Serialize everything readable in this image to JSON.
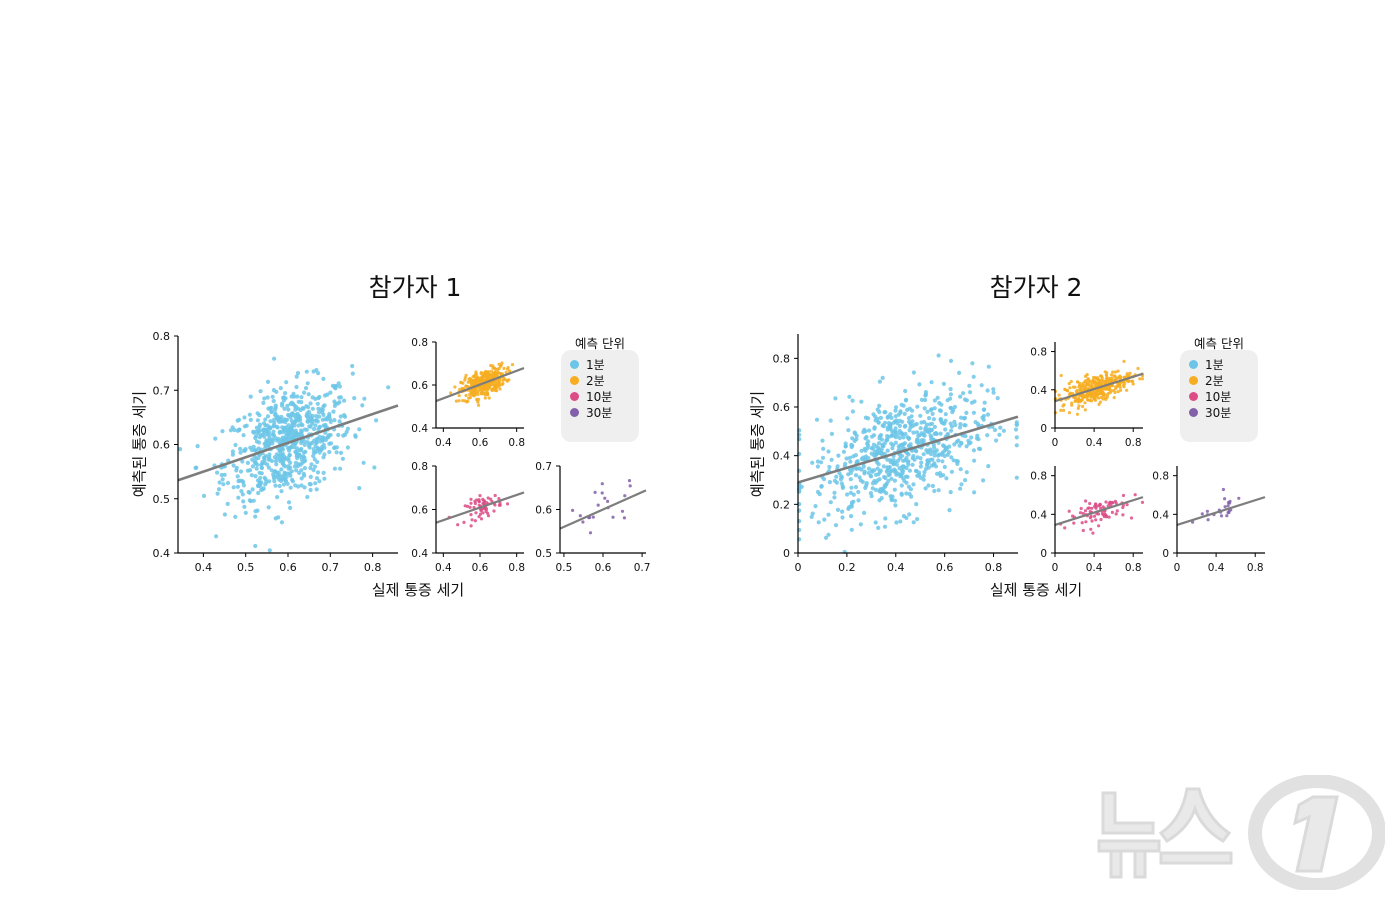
{
  "panels": [
    {
      "title": "참가자 1",
      "xlabel": "실제 통증 세기",
      "ylabel": "예측된 통증 세기",
      "legend": {
        "title": "예측 단위",
        "items": [
          {
            "label": "1분",
            "color": "#6cc5e8"
          },
          {
            "label": "2분",
            "color": "#f6ad1f"
          },
          {
            "label": "10분",
            "color": "#dc4c86"
          },
          {
            "label": "30분",
            "color": "#8261aa"
          }
        ]
      }
    },
    {
      "title": "참가자 2",
      "xlabel": "실제 통증 세기",
      "ylabel": "예측된 통증 세기",
      "legend": {
        "title": "예측 단위",
        "items": [
          {
            "label": "1분",
            "color": "#6cc5e8"
          },
          {
            "label": "2분",
            "color": "#f6ad1f"
          },
          {
            "label": "10분",
            "color": "#dc4c86"
          },
          {
            "label": "30분",
            "color": "#8261aa"
          }
        ]
      }
    }
  ],
  "chart_data": [
    {
      "type": "scatter",
      "participant": "참가자 1",
      "unit": "1분",
      "color": "#6cc5e8",
      "xlim": [
        0.34,
        0.86
      ],
      "ylim": [
        0.4,
        0.8
      ],
      "xticks": [
        "0.4",
        "0.5",
        "0.6",
        "0.7",
        "0.8"
      ],
      "yticks": [
        "0.4",
        "0.5",
        "0.6",
        "0.7",
        "0.8"
      ],
      "xticks_v": [
        0.4,
        0.5,
        0.6,
        0.7,
        0.8
      ],
      "yticks_v": [
        0.4,
        0.5,
        0.6,
        0.7,
        0.8
      ],
      "n_points": 700,
      "center": [
        0.6,
        0.61
      ],
      "spread": [
        0.075,
        0.05
      ],
      "fit": {
        "intercept": 0.444,
        "slope": 0.265
      }
    },
    {
      "type": "scatter",
      "participant": "참가자 1",
      "unit": "2분",
      "color": "#f6ad1f",
      "xlim": [
        0.36,
        0.84
      ],
      "ylim": [
        0.4,
        0.8
      ],
      "xticks": [
        "0.4",
        "0.6",
        "0.8"
      ],
      "yticks": [
        "0.4",
        "0.6",
        "0.8"
      ],
      "xticks_v": [
        0.4,
        0.6,
        0.8
      ],
      "yticks_v": [
        0.4,
        0.6,
        0.8
      ],
      "n_points": 350,
      "center": [
        0.62,
        0.61
      ],
      "spread": [
        0.06,
        0.03
      ],
      "fit": {
        "intercept": 0.41,
        "slope": 0.32
      }
    },
    {
      "type": "scatter",
      "participant": "참가자 1",
      "unit": "10분",
      "color": "#dc4c86",
      "xlim": [
        0.36,
        0.84
      ],
      "ylim": [
        0.4,
        0.8
      ],
      "xticks": [
        "0.4",
        "0.6",
        "0.8"
      ],
      "yticks": [
        "0.4",
        "0.6",
        "0.8"
      ],
      "xticks_v": [
        0.4,
        0.6,
        0.8
      ],
      "yticks_v": [
        0.4,
        0.6,
        0.8
      ],
      "n_points": 60,
      "center": [
        0.62,
        0.61
      ],
      "spread": [
        0.05,
        0.025
      ],
      "fit": {
        "intercept": 0.435,
        "slope": 0.29
      }
    },
    {
      "type": "scatter",
      "participant": "참가자 1",
      "unit": "30분",
      "color": "#8261aa",
      "xlim": [
        0.49,
        0.71
      ],
      "ylim": [
        0.5,
        0.7
      ],
      "xticks": [
        "0.5",
        "0.6",
        "0.7"
      ],
      "yticks": [
        "0.5",
        "0.6",
        "0.7"
      ],
      "xticks_v": [
        0.5,
        0.6,
        0.7
      ],
      "yticks_v": [
        0.5,
        0.6,
        0.7
      ],
      "n_points": 20,
      "center": [
        0.61,
        0.6
      ],
      "spread": [
        0.05,
        0.025
      ],
      "fit": {
        "intercept": 0.36,
        "slope": 0.4
      }
    },
    {
      "type": "scatter",
      "participant": "참가자 2",
      "unit": "1분",
      "color": "#6cc5e8",
      "xlim": [
        0,
        0.9
      ],
      "ylim": [
        0,
        0.9
      ],
      "xticks": [
        "0",
        "0.2",
        "0.4",
        "0.6",
        "0.8"
      ],
      "yticks": [
        "0",
        "0.2",
        "0.4",
        "0.6",
        "0.8"
      ],
      "xticks_v": [
        0,
        0.2,
        0.4,
        0.6,
        0.8
      ],
      "yticks_v": [
        0,
        0.2,
        0.4,
        0.6,
        0.8
      ],
      "n_points": 700,
      "center": [
        0.42,
        0.42
      ],
      "spread": [
        0.18,
        0.12
      ],
      "fit": {
        "intercept": 0.29,
        "slope": 0.3
      }
    },
    {
      "type": "scatter",
      "participant": "참가자 2",
      "unit": "2분",
      "color": "#f6ad1f",
      "xlim": [
        0,
        0.9
      ],
      "ylim": [
        0,
        0.9
      ],
      "xticks": [
        "0",
        "0.4",
        "0.8"
      ],
      "yticks": [
        "0",
        "0.4",
        "0.8"
      ],
      "xticks_v": [
        0,
        0.4,
        0.8
      ],
      "yticks_v": [
        0,
        0.4,
        0.8
      ],
      "n_points": 350,
      "center": [
        0.42,
        0.42
      ],
      "spread": [
        0.18,
        0.07
      ],
      "fit": {
        "intercept": 0.28,
        "slope": 0.32
      }
    },
    {
      "type": "scatter",
      "participant": "참가자 2",
      "unit": "10분",
      "color": "#dc4c86",
      "xlim": [
        0,
        0.9
      ],
      "ylim": [
        0,
        0.9
      ],
      "xticks": [
        "0",
        "0.4",
        "0.8"
      ],
      "yticks": [
        "0",
        "0.4",
        "0.8"
      ],
      "xticks_v": [
        0,
        0.4,
        0.8
      ],
      "yticks_v": [
        0,
        0.4,
        0.8
      ],
      "n_points": 80,
      "center": [
        0.42,
        0.42
      ],
      "spread": [
        0.16,
        0.07
      ],
      "fit": {
        "intercept": 0.29,
        "slope": 0.32
      }
    },
    {
      "type": "scatter",
      "participant": "참가자 2",
      "unit": "30분",
      "color": "#8261aa",
      "xlim": [
        0,
        0.9
      ],
      "ylim": [
        0,
        0.9
      ],
      "xticks": [
        "0",
        "0.4",
        "0.8"
      ],
      "yticks": [
        "0",
        "0.4",
        "0.8"
      ],
      "xticks_v": [
        0,
        0.4,
        0.8
      ],
      "yticks_v": [
        0,
        0.4,
        0.8
      ],
      "n_points": 22,
      "center": [
        0.42,
        0.44
      ],
      "spread": [
        0.15,
        0.06
      ],
      "fit": {
        "intercept": 0.29,
        "slope": 0.32
      }
    }
  ],
  "watermark": {
    "text": "뉴스1"
  }
}
